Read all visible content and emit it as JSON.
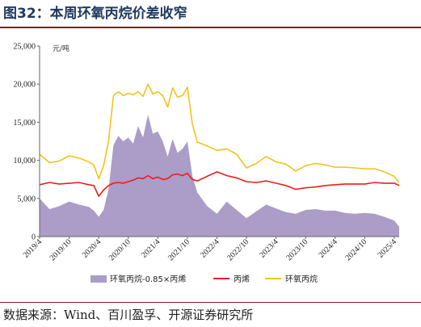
{
  "header": {
    "title": "图32：本周环氧丙烷价差收窄"
  },
  "footer": {
    "source": "数据来源：Wind、百川盈孚、开源证券研究所"
  },
  "colors": {
    "area": "#ab9dc7",
    "propylene": "#ee1c1c",
    "propylene_oxide": "#f5c31a",
    "title": "#1f3a5f",
    "rule": "#8a1c1c"
  },
  "chart_data": {
    "type": "line",
    "unit_label": "元/吨",
    "ylim": [
      0,
      25000
    ],
    "yticks": [
      0,
      5000,
      10000,
      15000,
      20000,
      25000
    ],
    "ytick_labels": [
      "0",
      "5,000",
      "10,000",
      "15,000",
      "20,000",
      "25,000"
    ],
    "xticks": [
      "2019/4",
      "2019/10",
      "2020/4",
      "2020/10",
      "2021/4",
      "2021/10",
      "2022/4",
      "2022/10",
      "2023/4",
      "2023/10",
      "2024/4",
      "2024/10",
      "2025/4"
    ],
    "legend_position": "bottom",
    "x": [
      "2019/4",
      "2019/6",
      "2019/8",
      "2019/10",
      "2019/12",
      "2020/2",
      "2020/3",
      "2020/4",
      "2020/5",
      "2020/6",
      "2020/7",
      "2020/8",
      "2020/9",
      "2020/10",
      "2020/11",
      "2020/12",
      "2021/1",
      "2021/2",
      "2021/3",
      "2021/4",
      "2021/5",
      "2021/6",
      "2021/7",
      "2021/8",
      "2021/9",
      "2021/10",
      "2021/11",
      "2021/12",
      "2022/2",
      "2022/4",
      "2022/6",
      "2022/8",
      "2022/10",
      "2022/12",
      "2023/2",
      "2023/4",
      "2023/6",
      "2023/8",
      "2023/10",
      "2023/12",
      "2024/2",
      "2024/4",
      "2024/6",
      "2024/8",
      "2024/10",
      "2024/12",
      "2025/2",
      "2025/4",
      "2025/5"
    ],
    "series": [
      {
        "name": "环氧丙烷-0.85×丙烯",
        "style": "area",
        "values": [
          5000,
          3600,
          4000,
          4600,
          4200,
          3900,
          3400,
          2600,
          3500,
          6200,
          12000,
          13200,
          12500,
          13000,
          12200,
          14500,
          13000,
          16000,
          13500,
          13800,
          12500,
          10500,
          12800,
          11000,
          11500,
          12500,
          8000,
          5800,
          4000,
          3000,
          4600,
          3500,
          2400,
          3300,
          4200,
          3700,
          3200,
          3000,
          3500,
          3600,
          3400,
          3400,
          3100,
          3000,
          3100,
          3000,
          2600,
          2100,
          1300
        ]
      },
      {
        "name": "丙烯",
        "style": "line",
        "values": [
          6800,
          7100,
          6900,
          7000,
          7100,
          6800,
          6700,
          5300,
          6100,
          6700,
          7000,
          7100,
          7000,
          7200,
          7400,
          7700,
          7600,
          8000,
          7600,
          7800,
          7500,
          7600,
          8100,
          8200,
          8000,
          8300,
          7500,
          7300,
          7900,
          8500,
          8000,
          7700,
          7200,
          7100,
          7300,
          7000,
          6700,
          6200,
          6400,
          6500,
          6700,
          6800,
          6900,
          6900,
          6900,
          7100,
          7000,
          7000,
          6700
        ]
      },
      {
        "name": "环氧丙烷",
        "style": "line",
        "values": [
          10800,
          9700,
          9900,
          10600,
          10300,
          9800,
          9400,
          7600,
          9300,
          12500,
          18500,
          19000,
          18500,
          18800,
          18600,
          19000,
          18400,
          20000,
          18700,
          19000,
          18500,
          17000,
          19500,
          18300,
          18500,
          19600,
          14800,
          12400,
          11900,
          11300,
          11500,
          10800,
          9000,
          9600,
          10500,
          9800,
          9500,
          8600,
          9300,
          9600,
          9400,
          9100,
          9100,
          9000,
          8900,
          8900,
          8500,
          7900,
          7100
        ]
      }
    ]
  }
}
